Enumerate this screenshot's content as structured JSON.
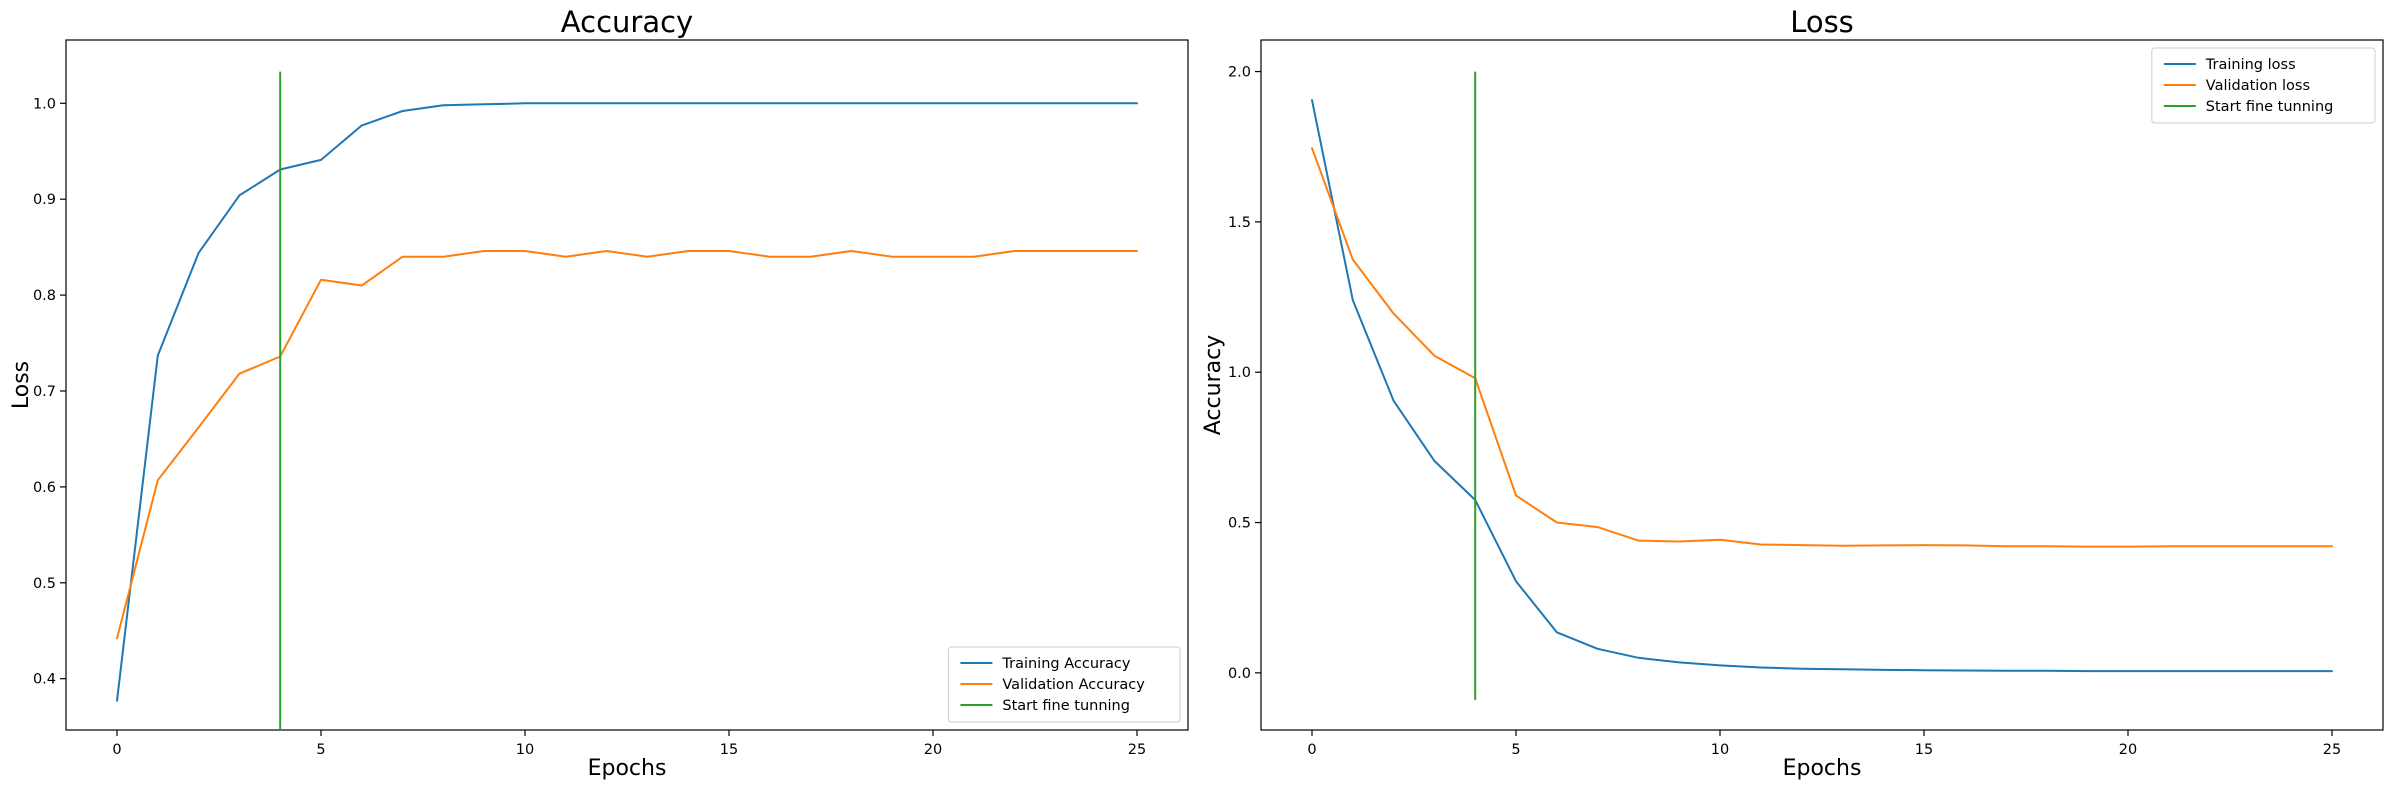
{
  "chart_data": [
    {
      "type": "line",
      "title": "Accuracy",
      "xlabel": "Epochs",
      "ylabel": "Loss",
      "xlim": [
        -1.25,
        26.25
      ],
      "ylim": [
        0.3465,
        1.066
      ],
      "xticks": [
        0,
        5,
        10,
        15,
        20,
        25
      ],
      "yticks": [
        0.4,
        0.5,
        0.6,
        0.7,
        0.8,
        0.9,
        1.0
      ],
      "ytick_labels": [
        "0.4",
        "0.5",
        "0.6",
        "0.7",
        "0.8",
        "0.9",
        "1.0"
      ],
      "grid": false,
      "legend": "lower-right",
      "x": [
        0,
        1,
        2,
        3,
        4,
        5,
        6,
        7,
        8,
        9,
        10,
        11,
        12,
        13,
        14,
        15,
        16,
        17,
        18,
        19,
        20,
        21,
        22,
        23,
        24,
        25
      ],
      "series": [
        {
          "name": "Training Accuracy",
          "color": "#1f77b4",
          "values": [
            0.377,
            0.737,
            0.844,
            0.904,
            0.931,
            0.941,
            0.977,
            0.992,
            0.998,
            0.999,
            1.0,
            1.0,
            1.0,
            1.0,
            1.0,
            1.0,
            1.0,
            1.0,
            1.0,
            1.0,
            1.0,
            1.0,
            1.0,
            1.0,
            1.0,
            1.0
          ]
        },
        {
          "name": "Validation Accuracy",
          "color": "#ff7f0e",
          "values": [
            0.442,
            0.607,
            0.662,
            0.718,
            0.736,
            0.816,
            0.81,
            0.84,
            0.84,
            0.846,
            0.846,
            0.84,
            0.846,
            0.84,
            0.846,
            0.846,
            0.84,
            0.84,
            0.846,
            0.84,
            0.84,
            0.84,
            0.846,
            0.846,
            0.846,
            0.846
          ]
        }
      ],
      "vline": {
        "name": "Start fine tunning",
        "color": "#2ca02c",
        "x": 4,
        "y": [
          0.3465,
          1.033
        ]
      }
    },
    {
      "type": "line",
      "title": "Loss",
      "xlabel": "Epochs",
      "ylabel": "Accuracy",
      "xlim": [
        -1.25,
        26.25
      ],
      "ylim": [
        -0.19,
        2.105
      ],
      "xticks": [
        0,
        5,
        10,
        15,
        20,
        25
      ],
      "yticks": [
        0.0,
        0.5,
        1.0,
        1.5,
        2.0
      ],
      "ytick_labels": [
        "0.0",
        "0.5",
        "1.0",
        "1.5",
        "2.0"
      ],
      "grid": false,
      "legend": "upper-right",
      "x": [
        0,
        1,
        2,
        3,
        4,
        5,
        6,
        7,
        8,
        9,
        10,
        11,
        12,
        13,
        14,
        15,
        16,
        17,
        18,
        19,
        20,
        21,
        22,
        23,
        24,
        25
      ],
      "series": [
        {
          "name": "Training loss",
          "color": "#1f77b4",
          "values": [
            1.905,
            1.24,
            0.905,
            0.705,
            0.575,
            0.305,
            0.135,
            0.08,
            0.05,
            0.035,
            0.025,
            0.018,
            0.014,
            0.012,
            0.01,
            0.009,
            0.008,
            0.007,
            0.007,
            0.006,
            0.006,
            0.006,
            0.006,
            0.006,
            0.006,
            0.006
          ]
        },
        {
          "name": "Validation loss",
          "color": "#ff7f0e",
          "values": [
            1.745,
            1.375,
            1.195,
            1.055,
            0.98,
            0.59,
            0.5,
            0.485,
            0.44,
            0.437,
            0.443,
            0.427,
            0.425,
            0.423,
            0.424,
            0.425,
            0.424,
            0.421,
            0.421,
            0.42,
            0.42,
            0.421,
            0.421,
            0.421,
            0.421,
            0.421
          ]
        }
      ],
      "vline": {
        "name": "Start fine tunning",
        "color": "#2ca02c",
        "x": 4,
        "y": [
          -0.09,
          2.0
        ]
      }
    }
  ]
}
